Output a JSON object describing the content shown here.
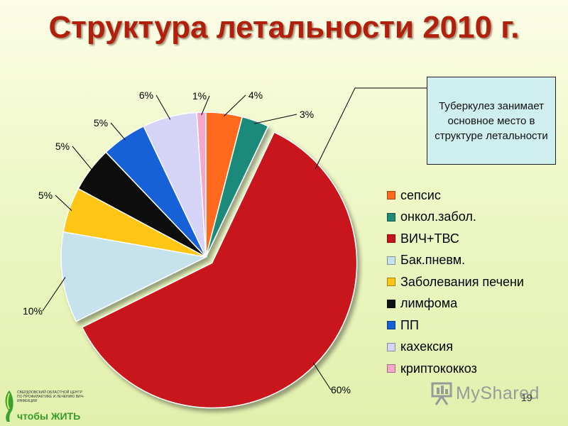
{
  "slide": {
    "title": "Структура летальности 2010 г.",
    "page_number": "19"
  },
  "callout": {
    "text": "Туберкулез занимает основное место в структуре летальности"
  },
  "chart_data": {
    "type": "pie",
    "title": "Структура летальности 2010 г.",
    "exploded": true,
    "legend_position": "right",
    "slices": [
      {
        "name": "сепсис",
        "value": 4,
        "label": "4%",
        "color": "#ff6a1a"
      },
      {
        "name": "онкол.забол.",
        "value": 3,
        "label": "3%",
        "color": "#1f8a7a"
      },
      {
        "name": "ВИЧ+ТВС",
        "value": 60,
        "label": "60%",
        "color": "#c8141c"
      },
      {
        "name": "Бак.пневм.",
        "value": 10,
        "label": "10%",
        "color": "#c6e2ec"
      },
      {
        "name": "Заболевания печени",
        "value": 5,
        "label": "5%",
        "color": "#ffc614"
      },
      {
        "name": "лимфома",
        "value": 5,
        "label": "5%",
        "color": "#111111"
      },
      {
        "name": "ПП",
        "value": 5,
        "label": "5%",
        "color": "#1460d8"
      },
      {
        "name": "кахексия",
        "value": 6,
        "label": "6%",
        "color": "#d6d4f6"
      },
      {
        "name": "криптококкоз",
        "value": 1,
        "label": "1%",
        "color": "#f6a8cc"
      }
    ]
  },
  "logo": {
    "text": "СВЕРДЛОВСКИЙ ОБЛАСТНОЙ ЦЕНТР ПО ПРОФИЛАКТИКЕ И ЛЕЧЕНИЮ ВИЧ-ИНФЕКЦИИ",
    "word": "чтобы ЖИТЬ"
  },
  "watermark": {
    "text": "MyShared",
    "icon": "presentation-board-icon"
  }
}
